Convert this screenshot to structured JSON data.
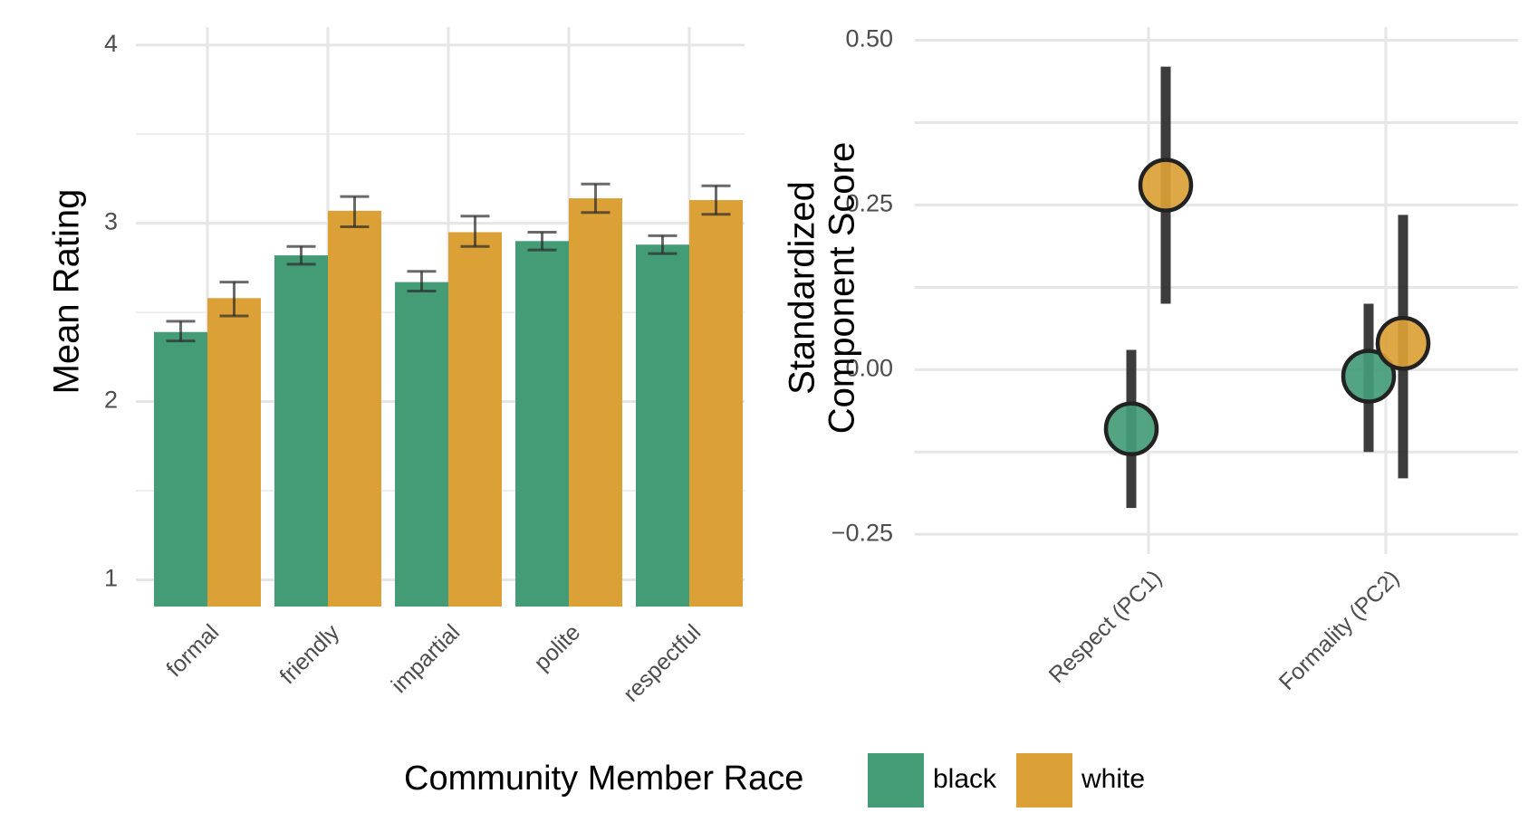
{
  "colors": {
    "black": "#449C77",
    "white": "#DBA136",
    "error": "#2b2b2b"
  },
  "legend": {
    "title": "Community Member Race",
    "entries": [
      {
        "key": "black",
        "label": "black"
      },
      {
        "key": "white",
        "label": "white"
      }
    ]
  },
  "chart_data": [
    {
      "type": "bar",
      "ylabel": "Mean Rating",
      "xlabel": "",
      "ylim": [
        0.85,
        4.1
      ],
      "yticks": [
        1,
        2,
        3,
        4
      ],
      "grid": true,
      "categories": [
        "formal",
        "friendly",
        "impartial",
        "polite",
        "respectful"
      ],
      "series": [
        {
          "name": "black",
          "values": [
            2.39,
            2.82,
            2.67,
            2.9,
            2.88
          ],
          "error_low": [
            2.34,
            2.77,
            2.62,
            2.85,
            2.83
          ],
          "error_high": [
            2.45,
            2.87,
            2.73,
            2.95,
            2.93
          ]
        },
        {
          "name": "white",
          "values": [
            2.58,
            3.07,
            2.95,
            3.14,
            3.13
          ],
          "error_low": [
            2.48,
            2.98,
            2.87,
            3.06,
            3.05
          ],
          "error_high": [
            2.67,
            3.15,
            3.04,
            3.22,
            3.21
          ]
        }
      ]
    },
    {
      "type": "scatter",
      "ylabel": "Standardized Component Score",
      "ylabel_lines": [
        "Standardized",
        "Component Score"
      ],
      "xlabel": "",
      "ylim": [
        -0.28,
        0.52
      ],
      "yticks": [
        -0.25,
        0,
        0.25,
        0.5
      ],
      "ytick_labels": [
        "−0.25",
        "0.00",
        "0.25",
        "0.50"
      ],
      "grid": true,
      "categories": [
        "Respect (PC1)",
        "Formality (PC2)"
      ],
      "series": [
        {
          "name": "black",
          "values": [
            -0.09,
            -0.01
          ],
          "error_low": [
            -0.21,
            -0.125
          ],
          "error_high": [
            0.03,
            0.1
          ]
        },
        {
          "name": "white",
          "values": [
            0.28,
            0.04
          ],
          "error_low": [
            0.1,
            -0.165
          ],
          "error_high": [
            0.46,
            0.235
          ]
        }
      ]
    }
  ]
}
